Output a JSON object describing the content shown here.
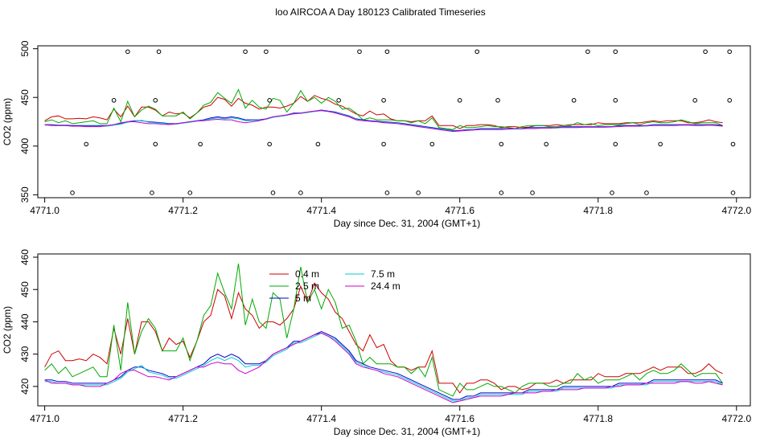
{
  "title": "loo AIRCOA A  Day 180123  Calibrated Timeseries",
  "chart_data": [
    {
      "type": "line",
      "xlabel": "Day since Dec. 31, 2004 (GMT+1)",
      "ylabel": "CO2 (ppm)",
      "xlim": [
        4770.99,
        4772.02
      ],
      "ylim": [
        347,
        503
      ],
      "xticks": [
        4771.0,
        4771.2,
        4771.4,
        4771.6,
        4771.8,
        4772.0
      ],
      "xtick_labels": [
        "4771.0",
        "4771.2",
        "4771.4",
        "4771.6",
        "4771.8",
        "4772.0"
      ],
      "yticks": [
        350,
        400,
        450,
        500
      ],
      "ytick_labels": [
        "350",
        "400",
        "450",
        "500"
      ],
      "markers": {
        "x": [
          4771.04,
          4771.06,
          4771.1,
          4771.12,
          4771.155,
          4771.16,
          4771.16,
          4771.165,
          4771.21,
          4771.225,
          4771.29,
          4771.32,
          4771.325,
          4771.325,
          4771.33,
          4771.37,
          4771.395,
          4771.425,
          4771.455,
          4771.49,
          4771.49,
          4771.495,
          4771.495,
          4771.54,
          4771.56,
          4771.6,
          4771.625,
          4771.655,
          4771.66,
          4771.66,
          4771.705,
          4771.725,
          4771.765,
          4771.785,
          4771.82,
          4771.825,
          4771.825,
          4771.825,
          4771.87,
          4771.89,
          4771.94,
          4771.955,
          4771.99,
          4771.99,
          4771.995,
          4771.995
        ],
        "y": [
          352,
          402,
          447,
          497,
          352,
          402,
          447,
          497,
          352,
          402,
          497,
          497,
          447,
          402,
          352,
          352,
          402,
          447,
          497,
          447,
          402,
          497,
          352,
          352,
          402,
          447,
          497,
          447,
          402,
          352,
          352,
          402,
          447,
          497,
          352,
          402,
          447,
          497,
          352,
          402,
          447,
          497,
          497,
          447,
          402,
          352
        ]
      }
    },
    {
      "type": "line",
      "xlabel": "Day since Dec. 31, 2004 (GMT+1)",
      "ylabel": "CO2 (ppm)",
      "xlim": [
        4770.99,
        4772.02
      ],
      "ylim": [
        414,
        461
      ],
      "xticks": [
        4771.0,
        4771.2,
        4771.4,
        4771.6,
        4771.8,
        4772.0
      ],
      "xtick_labels": [
        "4771.0",
        "4771.2",
        "4771.4",
        "4771.6",
        "4771.8",
        "4772.0"
      ],
      "yticks": [
        420,
        430,
        440,
        450,
        460
      ],
      "ytick_labels": [
        "420",
        "430",
        "440",
        "450",
        "460"
      ],
      "legend": {
        "placement": "top-center",
        "entries": [
          {
            "label": "0.4 m",
            "color": "#cc0000"
          },
          {
            "label": "2.5 m",
            "color": "#00aa00"
          },
          {
            "label": "5 m",
            "color": "#0000cc"
          },
          {
            "label": "7.5 m",
            "color": "#00cccc"
          },
          {
            "label": "24.4 m",
            "color": "#cc00cc"
          }
        ]
      }
    }
  ],
  "series_data": {
    "x": [
      4771.0,
      4771.01,
      4771.02,
      4771.03,
      4771.04,
      4771.05,
      4771.06,
      4771.07,
      4771.08,
      4771.09,
      4771.1,
      4771.11,
      4771.12,
      4771.13,
      4771.14,
      4771.15,
      4771.16,
      4771.17,
      4771.18,
      4771.19,
      4771.2,
      4771.21,
      4771.22,
      4771.23,
      4771.24,
      4771.25,
      4771.26,
      4771.27,
      4771.28,
      4771.29,
      4771.3,
      4771.31,
      4771.32,
      4771.33,
      4771.34,
      4771.35,
      4771.36,
      4771.37,
      4771.38,
      4771.39,
      4771.4,
      4771.41,
      4771.42,
      4771.43,
      4771.44,
      4771.45,
      4771.46,
      4771.47,
      4771.48,
      4771.49,
      4771.5,
      4771.51,
      4771.52,
      4771.53,
      4771.54,
      4771.55,
      4771.56,
      4771.57,
      4771.58,
      4771.59,
      4771.6,
      4771.61,
      4771.62,
      4771.63,
      4771.64,
      4771.65,
      4771.66,
      4771.67,
      4771.68,
      4771.69,
      4771.7,
      4771.71,
      4771.72,
      4771.73,
      4771.74,
      4771.75,
      4771.76,
      4771.77,
      4771.78,
      4771.79,
      4771.8,
      4771.81,
      4771.82,
      4771.83,
      4771.84,
      4771.85,
      4771.86,
      4771.87,
      4771.88,
      4771.89,
      4771.9,
      4771.91,
      4771.92,
      4771.93,
      4771.94,
      4771.95,
      4771.96,
      4771.97,
      4771.98
    ],
    "series": [
      {
        "name": "0.4 m",
        "color": "#cc0000",
        "values": [
          426,
          430,
          431,
          428,
          428,
          428.5,
          428,
          430,
          429,
          427,
          438,
          430,
          441,
          430,
          440,
          440,
          437,
          431,
          435,
          433,
          434,
          429,
          434,
          440,
          442,
          450,
          448,
          441,
          449,
          444,
          442,
          438,
          440,
          440,
          439,
          441,
          444,
          451,
          446,
          452,
          449,
          447,
          443,
          441,
          437,
          433,
          431,
          436,
          432,
          433,
          428,
          426,
          426,
          425,
          426,
          426,
          431,
          421,
          421,
          421,
          418,
          421,
          421,
          422,
          422,
          421,
          419,
          420,
          420,
          419,
          419.5,
          421,
          421,
          421,
          422,
          421,
          422,
          422,
          422,
          422,
          424,
          423,
          423,
          423,
          424,
          424,
          424,
          425,
          426,
          425,
          426,
          426,
          426,
          424,
          424,
          425,
          427,
          425,
          424
        ]
      },
      {
        "name": "2.5 m",
        "color": "#00aa00",
        "values": [
          425,
          427,
          424,
          426,
          423,
          424,
          425,
          426,
          423,
          423,
          439,
          425,
          446,
          430,
          437,
          441,
          438,
          431,
          431,
          431,
          435,
          428,
          434,
          442,
          445,
          455,
          449,
          444,
          458,
          439,
          447,
          440,
          438,
          449,
          447,
          435,
          444,
          457,
          446,
          450,
          444,
          450,
          446,
          438,
          439,
          434,
          427,
          429,
          427,
          427,
          427,
          426,
          426,
          424,
          426,
          423,
          429,
          419,
          418,
          417,
          421,
          419,
          419,
          420,
          421,
          420,
          420,
          419,
          418,
          420,
          421,
          421,
          421,
          420,
          420,
          421,
          421,
          424,
          422,
          423,
          421,
          422,
          422,
          422,
          423,
          424,
          422,
          424,
          425,
          424,
          424,
          425,
          427,
          425,
          423,
          424,
          424,
          424,
          421
        ]
      },
      {
        "name": "5 m",
        "color": "#0000cc",
        "values": [
          422,
          422,
          421.5,
          421.5,
          421,
          421,
          421,
          421,
          421,
          421,
          422,
          423,
          425,
          426,
          426,
          425,
          424.5,
          424,
          423,
          423,
          424,
          425,
          426,
          427,
          429,
          430,
          429,
          430,
          429,
          427,
          427,
          427,
          428,
          430,
          431,
          432,
          434,
          434,
          435,
          436,
          437,
          436,
          435,
          433,
          431,
          428,
          427,
          426,
          425.5,
          425,
          424.5,
          424,
          423,
          422,
          421,
          420,
          419,
          418,
          417,
          416,
          416,
          417,
          417,
          418,
          418,
          418,
          418,
          418,
          418,
          418,
          419,
          419,
          419,
          419,
          419,
          420,
          420,
          420,
          420,
          420,
          420,
          420,
          420,
          421,
          421,
          421,
          421,
          421,
          422,
          422,
          422,
          422,
          422,
          422,
          422,
          422,
          422,
          422,
          421
        ]
      },
      {
        "name": "7.5 m",
        "color": "#00cccc",
        "values": [
          421.5,
          421.5,
          421,
          421,
          420.5,
          420.5,
          420.5,
          420.5,
          420.5,
          420.5,
          421.5,
          422.5,
          424.5,
          425.5,
          426.5,
          424.5,
          424,
          423.5,
          422.5,
          422.5,
          423.5,
          424.5,
          425.5,
          426.5,
          428,
          429,
          428,
          429,
          428,
          426,
          426.5,
          426.5,
          427.5,
          429.5,
          430.5,
          431.5,
          433.5,
          433.5,
          434.5,
          435.5,
          436.5,
          435.5,
          434.5,
          432.5,
          430.5,
          427.5,
          426.5,
          425.5,
          425,
          424.5,
          424,
          423.5,
          422.5,
          421.5,
          420.5,
          419.5,
          418.5,
          417.5,
          416.5,
          415.5,
          415.5,
          416.5,
          416.5,
          417.5,
          417.5,
          417.5,
          417.5,
          417.5,
          417.5,
          417.5,
          418.5,
          418.5,
          418.5,
          418.5,
          418.5,
          419.5,
          419.5,
          419.5,
          419.5,
          419.5,
          419.5,
          419.5,
          419.5,
          420.5,
          420.5,
          420.5,
          420.5,
          420.5,
          421.5,
          421.5,
          421.5,
          421.5,
          421.5,
          421.5,
          421.5,
          421.5,
          421.5,
          421.5,
          420.5
        ]
      },
      {
        "name": "24.4 m",
        "color": "#cc00cc",
        "values": [
          422,
          421,
          421,
          421,
          420.5,
          420.5,
          420,
          420,
          420,
          421,
          422,
          424,
          425,
          425,
          424,
          423,
          423,
          422.5,
          422,
          423,
          424,
          425,
          426,
          426,
          427,
          427.5,
          427,
          427,
          425,
          424,
          425,
          426,
          428,
          430,
          431,
          432,
          433,
          434,
          435,
          436,
          436.5,
          435.5,
          434,
          432,
          430,
          427,
          426,
          425.5,
          425,
          424,
          423.5,
          423,
          422,
          421,
          420,
          419,
          418,
          417,
          416,
          415,
          415.5,
          416,
          416.5,
          417,
          417,
          417,
          417,
          417.5,
          418,
          418,
          418,
          418,
          418.5,
          418.5,
          419,
          419,
          419,
          419,
          419.5,
          419.5,
          419.5,
          419.5,
          420,
          420,
          420.5,
          420.5,
          420.5,
          421,
          421,
          421,
          421,
          421,
          421.5,
          421.5,
          421,
          421,
          421.5,
          421,
          420.5
        ]
      }
    ]
  }
}
